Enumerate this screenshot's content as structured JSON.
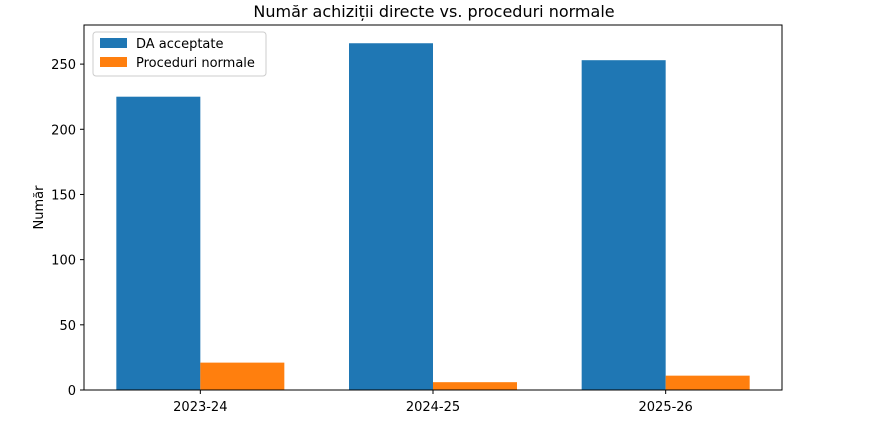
{
  "chart_data": {
    "type": "bar",
    "title": "Număr achiziții directe vs. proceduri normale",
    "xlabel": "",
    "ylabel": "Număr",
    "categories": [
      "2023-24",
      "2024-25",
      "2025-26"
    ],
    "series": [
      {
        "name": "DA acceptate",
        "values": [
          225,
          266,
          253
        ],
        "color": "#1f77b4"
      },
      {
        "name": "Proceduri normale",
        "values": [
          21,
          6,
          11
        ],
        "color": "#ff7f0e"
      }
    ],
    "ylim": [
      0,
      280
    ],
    "yticks": [
      0,
      50,
      100,
      150,
      200,
      250
    ],
    "legend": "top-left",
    "grid": false
  }
}
